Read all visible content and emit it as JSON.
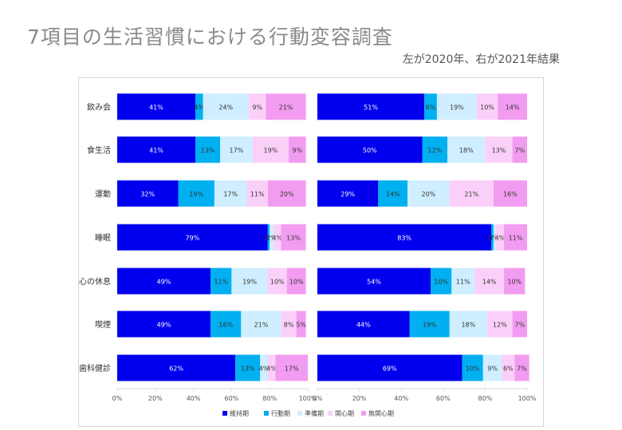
{
  "title": "7項目の生活習慣における行動変容調査",
  "subtitle": "左が2020年、右が2021年結果",
  "chart_data": [
    {
      "type": "bar",
      "stacked": true,
      "orientation": "horizontal",
      "categories": [
        "飲み会",
        "食生活",
        "運動",
        "睡眠",
        "心の休息",
        "喫煙",
        "歯科健診"
      ],
      "series": [
        {
          "name": "維持期",
          "color": "#0000ee",
          "values": [
            41,
            41,
            32,
            79,
            49,
            49,
            62
          ]
        },
        {
          "name": "行動期",
          "color": "#00b0f0",
          "values": [
            4,
            13,
            19,
            1,
            11,
            16,
            13
          ]
        },
        {
          "name": "準備期",
          "color": "#cfeeff",
          "values": [
            24,
            17,
            17,
            2,
            19,
            21,
            4
          ]
        },
        {
          "name": "関心期",
          "color": "#fbd0f8",
          "values": [
            9,
            19,
            11,
            4,
            10,
            8,
            4
          ]
        },
        {
          "name": "無関心期",
          "color": "#f19cf0",
          "values": [
            21,
            9,
            20,
            13,
            10,
            5,
            17
          ]
        }
      ],
      "data_labels": [
        [
          "41%",
          "4%",
          "24%",
          "9%",
          "21%"
        ],
        [
          "41%",
          "13%",
          "17%",
          "19%",
          "9%"
        ],
        [
          "32%",
          "19%",
          "17%",
          "11%",
          "20%"
        ],
        [
          "79%",
          "1%",
          "2%",
          "4%",
          "13%"
        ],
        [
          "49%",
          "11%",
          "19%",
          "10%",
          "10%"
        ],
        [
          "49%",
          "16%",
          "21%",
          "8%",
          "5%"
        ],
        [
          "62%",
          "13%",
          "4%",
          "4%",
          "17%"
        ]
      ],
      "x_ticks": [
        "0%",
        "20%",
        "40%",
        "60%",
        "80%",
        "100%"
      ],
      "xlim": [
        0,
        100
      ],
      "grid": false
    },
    {
      "type": "bar",
      "stacked": true,
      "orientation": "horizontal",
      "categories": [
        "飲み会",
        "食生活",
        "運動",
        "睡眠",
        "心の休息",
        "喫煙",
        "歯科健診"
      ],
      "series": [
        {
          "name": "維持期",
          "color": "#0000ee",
          "values": [
            51,
            50,
            29,
            83,
            54,
            44,
            69
          ]
        },
        {
          "name": "行動期",
          "color": "#00b0f0",
          "values": [
            6,
            12,
            14,
            1,
            10,
            19,
            10
          ]
        },
        {
          "name": "準備期",
          "color": "#cfeeff",
          "values": [
            19,
            18,
            20,
            1,
            11,
            18,
            9
          ]
        },
        {
          "name": "関心期",
          "color": "#fbd0f8",
          "values": [
            10,
            13,
            21,
            4,
            14,
            12,
            6
          ]
        },
        {
          "name": "無関心期",
          "color": "#f19cf0",
          "values": [
            14,
            7,
            16,
            11,
            10,
            7,
            7
          ]
        }
      ],
      "data_labels": [
        [
          "51%",
          "6%",
          "19%",
          "10%",
          "14%"
        ],
        [
          "50%",
          "12%",
          "18%",
          "13%",
          "7%"
        ],
        [
          "29%",
          "14%",
          "20%",
          "21%",
          "16%"
        ],
        [
          "83%",
          "1%",
          "1%",
          "4%",
          "11%"
        ],
        [
          "54%",
          "10%",
          "11%",
          "14%",
          "10%"
        ],
        [
          "44%",
          "19%",
          "18%",
          "12%",
          "7%"
        ],
        [
          "69%",
          "10%",
          "9%",
          "6%",
          "7%"
        ]
      ],
      "x_ticks": [
        "0%",
        "20%",
        "40%",
        "60%",
        "80%",
        "100%"
      ],
      "xlim": [
        0,
        100
      ],
      "grid": false
    }
  ]
}
